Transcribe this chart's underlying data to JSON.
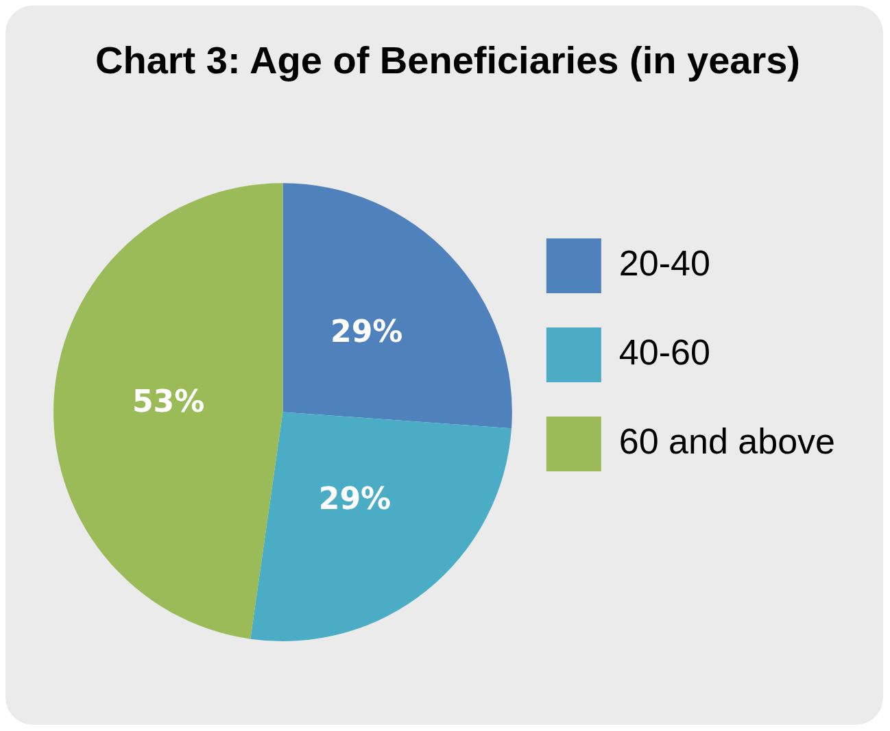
{
  "chart_data": {
    "type": "pie",
    "title": "Chart 3: Age of Beneficiaries (in years)",
    "categories": [
      "20-40",
      "40-60",
      "60 and above"
    ],
    "values": [
      29,
      29,
      53
    ],
    "colors": [
      "#4f81bd",
      "#4bacc6",
      "#9bbb59"
    ],
    "value_labels": [
      "29%",
      "29%",
      "53%"
    ],
    "legend": "right"
  }
}
